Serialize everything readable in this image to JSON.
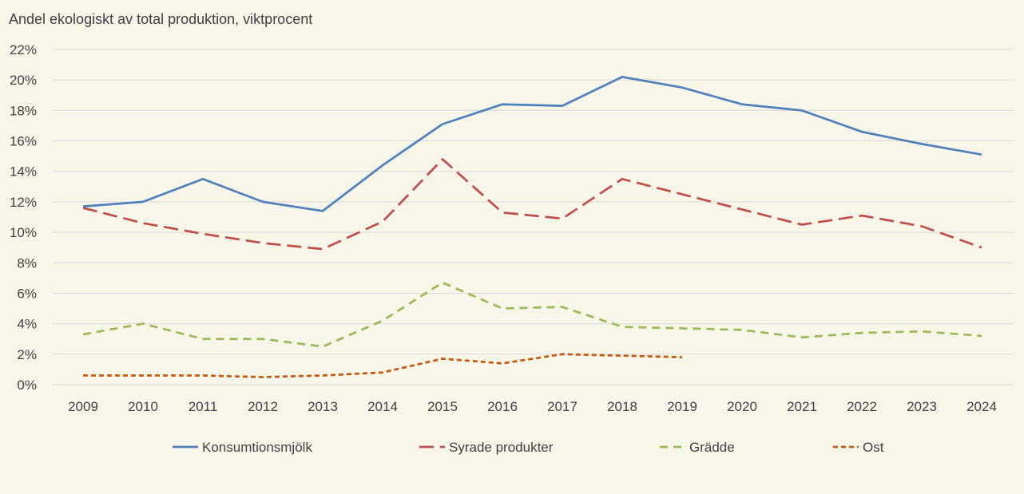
{
  "chart_data": {
    "type": "line",
    "title": "Andel ekologiskt av total produktion, viktprocent",
    "xlabel": "",
    "ylabel": "",
    "ylim": [
      0,
      22
    ],
    "y_ticks": [
      "0%",
      "2%",
      "4%",
      "6%",
      "8%",
      "10%",
      "12%",
      "14%",
      "16%",
      "18%",
      "20%",
      "22%"
    ],
    "y_tick_values": [
      0,
      2,
      4,
      6,
      8,
      10,
      12,
      14,
      16,
      18,
      20,
      22
    ],
    "grid": "horizontal",
    "legend_position": "bottom",
    "categories": [
      "2009",
      "2010",
      "2011",
      "2012",
      "2013",
      "2014",
      "2015",
      "2016",
      "2017",
      "2018",
      "2019",
      "2020",
      "2021",
      "2022",
      "2023",
      "2024"
    ],
    "series": [
      {
        "name": "Konsumtionsmjölk",
        "color": "#4f81bd",
        "style": "solid",
        "values": [
          11.7,
          12.0,
          13.5,
          12.0,
          11.4,
          14.4,
          17.1,
          18.4,
          18.3,
          20.2,
          19.5,
          18.4,
          18.0,
          16.6,
          15.8,
          15.1
        ]
      },
      {
        "name": "Syrade produkter",
        "color": "#c0504d",
        "style": "long-dash",
        "values": [
          11.6,
          10.6,
          9.9,
          9.3,
          8.9,
          10.7,
          14.8,
          11.3,
          10.9,
          13.5,
          12.5,
          11.5,
          10.5,
          11.1,
          10.4,
          9.0
        ]
      },
      {
        "name": "Grädde",
        "color": "#9bbb59",
        "style": "dash",
        "values": [
          3.3,
          4.0,
          3.0,
          3.0,
          2.5,
          4.2,
          6.7,
          5.0,
          5.1,
          3.8,
          3.7,
          3.6,
          3.1,
          3.4,
          3.5,
          3.2
        ]
      },
      {
        "name": "Ost",
        "color": "#c55a11",
        "style": "short-dash",
        "values": [
          0.6,
          0.6,
          0.6,
          0.5,
          0.6,
          0.8,
          1.7,
          1.4,
          2.0,
          1.9,
          1.8,
          null,
          null,
          null,
          null,
          null
        ]
      }
    ]
  }
}
